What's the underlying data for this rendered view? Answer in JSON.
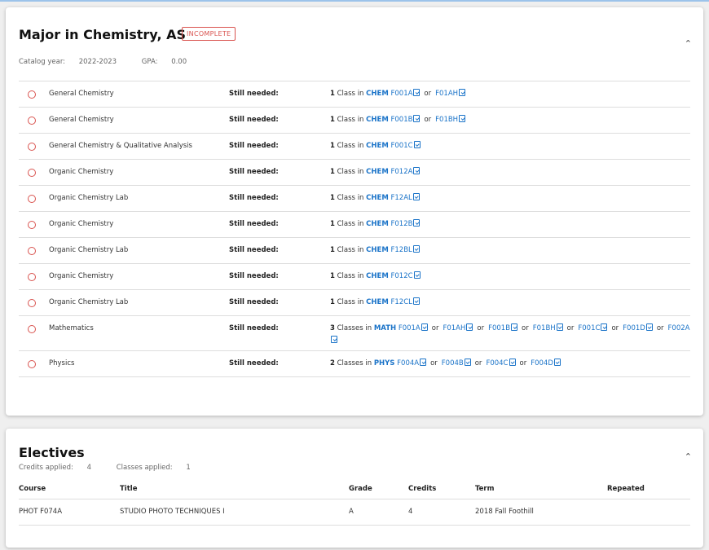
{
  "major": {
    "title": "Major in Chemistry, AS",
    "status": "INCOMPLETE",
    "catalog_label": "Catalog year:",
    "catalog_year": "2022-2023",
    "gpa_label": "GPA:",
    "gpa": "0.00",
    "still_needed": "Still needed:",
    "requirements": [
      {
        "name": "General Chemistry",
        "count": "1",
        "unit": "Class in",
        "subject": "CHEM",
        "courses": [
          "F001A",
          "F01AH"
        ]
      },
      {
        "name": "General Chemistry",
        "count": "1",
        "unit": "Class in",
        "subject": "CHEM",
        "courses": [
          "F001B",
          "F01BH"
        ]
      },
      {
        "name": "General Chemistry & Qualitative Analysis",
        "count": "1",
        "unit": "Class in",
        "subject": "CHEM",
        "courses": [
          "F001C"
        ]
      },
      {
        "name": "Organic Chemistry",
        "count": "1",
        "unit": "Class in",
        "subject": "CHEM",
        "courses": [
          "F012A"
        ]
      },
      {
        "name": "Organic Chemistry Lab",
        "count": "1",
        "unit": "Class in",
        "subject": "CHEM",
        "courses": [
          "F12AL"
        ]
      },
      {
        "name": "Organic Chemistry",
        "count": "1",
        "unit": "Class in",
        "subject": "CHEM",
        "courses": [
          "F012B"
        ]
      },
      {
        "name": "Organic Chemistry Lab",
        "count": "1",
        "unit": "Class in",
        "subject": "CHEM",
        "courses": [
          "F12BL"
        ]
      },
      {
        "name": "Organic Chemistry",
        "count": "1",
        "unit": "Class in",
        "subject": "CHEM",
        "courses": [
          "F012C"
        ]
      },
      {
        "name": "Organic Chemistry Lab",
        "count": "1",
        "unit": "Class in",
        "subject": "CHEM",
        "courses": [
          "F12CL"
        ]
      },
      {
        "name": "Mathematics",
        "count": "3",
        "unit": "Classes in",
        "subject": "MATH",
        "courses": [
          "F001A",
          "F01AH",
          "F001B",
          "F01BH",
          "F001C",
          "F001D",
          "F002A"
        ]
      },
      {
        "name": "Physics",
        "count": "2",
        "unit": "Classes in",
        "subject": "PHYS",
        "courses": [
          "F004A",
          "F004B",
          "F004C",
          "F004D"
        ]
      }
    ],
    "or_label": "or"
  },
  "electives": {
    "title": "Electives",
    "credits_label": "Credits applied:",
    "credits": "4",
    "classes_label": "Classes applied:",
    "classes": "1",
    "columns": [
      "Course",
      "Title",
      "Grade",
      "Credits",
      "Term",
      "Repeated"
    ],
    "rows": [
      [
        "PHOT F074A",
        "STUDIO PHOTO TECHNIQUES I",
        "A",
        "4",
        "2018 Fall Foothill",
        ""
      ]
    ]
  },
  "colors": {
    "accent": "#1a73c8",
    "incomplete": "#d9534f"
  }
}
